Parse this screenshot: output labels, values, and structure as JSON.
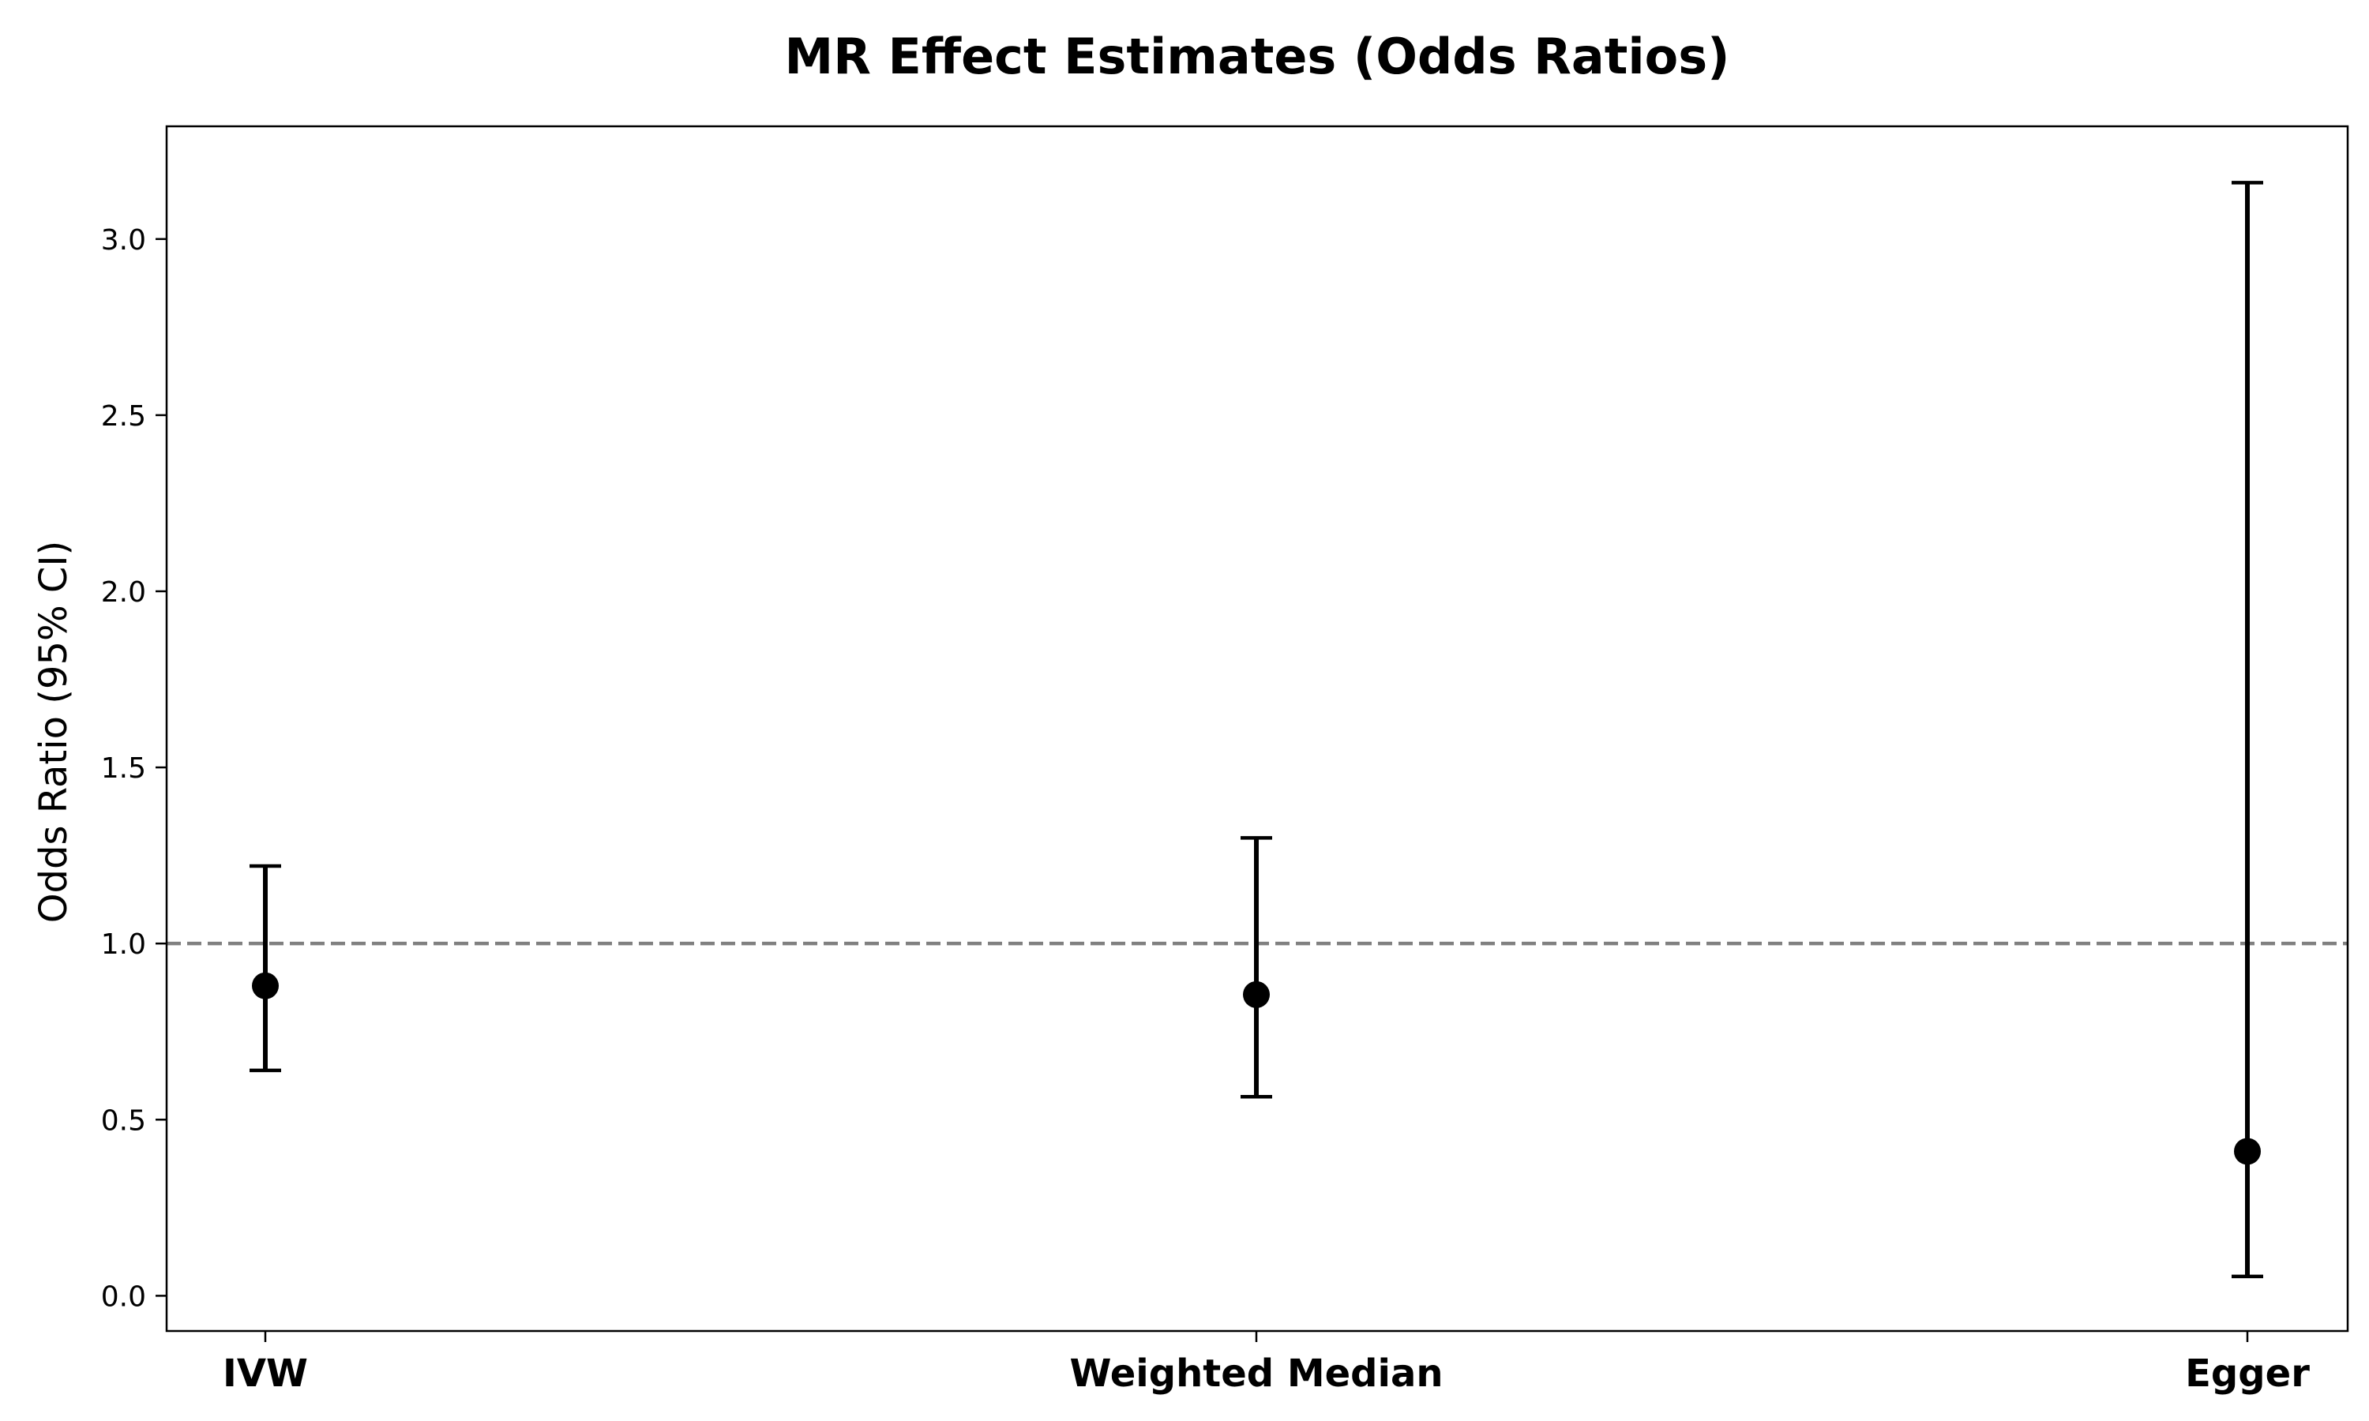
{
  "chart_data": {
    "type": "scatter",
    "title": "MR Effect Estimates (Odds Ratios)",
    "xlabel": "",
    "ylabel": "Odds Ratio (95% CI)",
    "categories": [
      "IVW",
      "Weighted Median",
      "Egger"
    ],
    "estimates": [
      0.88,
      0.855,
      0.41
    ],
    "ci_lower": [
      0.64,
      0.565,
      0.055
    ],
    "ci_upper": [
      1.22,
      1.3,
      3.16
    ],
    "ylim": [
      -0.1,
      3.32
    ],
    "yticks": [
      0.0,
      0.5,
      1.0,
      1.5,
      2.0,
      2.5,
      3.0
    ],
    "ytick_labels": [
      "0.0",
      "0.5",
      "1.0",
      "1.5",
      "2.0",
      "2.5",
      "3.0"
    ],
    "reference_line": {
      "y": 1.0,
      "style": "dashed",
      "color": "#808080"
    },
    "marker_color": "#000000",
    "grid": false,
    "legend": "none"
  }
}
